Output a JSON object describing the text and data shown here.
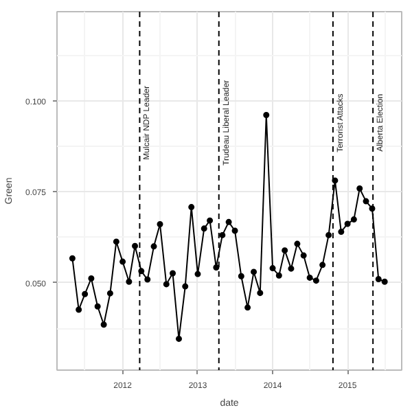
{
  "chart_data": {
    "type": "line",
    "xlabel": "date",
    "ylabel": "Green",
    "x": [
      "2011-05",
      "2011-06",
      "2011-07",
      "2011-08",
      "2011-09",
      "2011-10",
      "2011-11",
      "2011-12",
      "2012-01",
      "2012-02",
      "2012-03",
      "2012-04",
      "2012-05",
      "2012-06",
      "2012-07",
      "2012-08",
      "2012-09",
      "2012-10",
      "2012-11",
      "2012-12",
      "2013-01",
      "2013-02",
      "2013-03",
      "2013-04",
      "2013-05",
      "2013-06",
      "2013-07",
      "2013-08",
      "2013-09",
      "2013-10",
      "2013-11",
      "2013-12",
      "2014-01",
      "2014-02",
      "2014-03",
      "2014-04",
      "2014-05",
      "2014-06",
      "2014-07",
      "2014-08",
      "2014-09",
      "2014-10",
      "2014-11",
      "2014-12",
      "2015-01",
      "2015-02",
      "2015-03",
      "2015-04",
      "2015-05",
      "2015-06",
      "2015-07"
    ],
    "series": [
      {
        "color": "#000000",
        "values": [
          0.0567,
          0.0426,
          0.0469,
          0.0512,
          0.0435,
          0.0385,
          0.0471,
          0.0613,
          0.0558,
          0.0503,
          0.0601,
          0.0532,
          0.0509,
          0.06,
          0.0661,
          0.0496,
          0.0526,
          0.0346,
          0.049,
          0.0708,
          0.0524,
          0.0649,
          0.0671,
          0.0542,
          0.0631,
          0.0667,
          0.0643,
          0.0518,
          0.0432,
          0.053,
          0.0472,
          0.0961,
          0.054,
          0.052,
          0.0589,
          0.0539,
          0.0607,
          0.0575,
          0.0514,
          0.0506,
          0.0549,
          0.0631,
          0.0781,
          0.064,
          0.0662,
          0.0674,
          0.0759,
          0.0724,
          0.0704,
          0.051,
          0.0503
        ]
      }
    ],
    "xlim": [
      "2011-02-15",
      "2015-09-22"
    ],
    "xticks": [
      "2012",
      "2013",
      "2014",
      "2015"
    ],
    "ylim": [
      0.026,
      0.1245
    ],
    "yticks": [
      {
        "value": 0.05,
        "label": "0.050"
      },
      {
        "value": 0.075,
        "label": "0.075"
      },
      {
        "value": 0.1,
        "label": "0.100"
      }
    ],
    "ref_lines": [
      {
        "axis": "x",
        "value": "2012-03-24",
        "label": "Mulcair NDP Leader",
        "line_style": "dashed",
        "color": "#000000"
      },
      {
        "axis": "x",
        "value": "2013-04-14",
        "label": "Trudeau Liberal Leader",
        "line_style": "dashed",
        "color": "#000000"
      },
      {
        "axis": "x",
        "value": "2014-10-22",
        "label": "Terrorist Attacks",
        "line_style": "dashed",
        "color": "#000000"
      },
      {
        "axis": "x",
        "value": "2015-05-05",
        "label": "Alberta Election",
        "line_style": "dashed",
        "color": "#000000"
      }
    ],
    "grid": true,
    "marker": "circle",
    "line_style": "solid"
  }
}
